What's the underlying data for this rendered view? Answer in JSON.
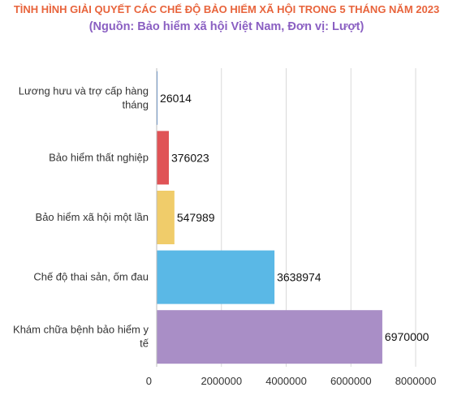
{
  "header": {
    "title": "TÌNH HÌNH GIẢI QUYẾT CÁC CHẾ ĐỘ BẢO HIỂM XÃ HỘI TRONG 5 THÁNG NĂM 2023",
    "subtitle": "(Nguồn: Bảo hiểm xã hội Việt Nam, Đơn vị: Lượt)"
  },
  "chart_data": {
    "type": "bar",
    "orientation": "horizontal",
    "title": "TÌNH HÌNH GIẢI QUYẾT CÁC CHẾ ĐỘ BẢO HIỂM XÃ HỘI TRONG 5 THÁNG NĂM 2023",
    "subtitle": "(Nguồn: Bảo hiểm xã hội Việt Nam, Đơn vị: Lượt)",
    "categories": [
      [
        "Lương hưu và trợ cấp hàng",
        "tháng"
      ],
      [
        "Bảo hiểm thất nghiệp"
      ],
      [
        "Bảo hiểm xã hội một lần"
      ],
      [
        "Chế độ thai sản, ốm đau"
      ],
      [
        "Khám chữa bệnh bảo hiểm y",
        "tế"
      ]
    ],
    "values": [
      26014,
      376023,
      547989,
      3638974,
      6970000
    ],
    "value_labels": [
      "26014",
      "376023",
      "547989",
      "3638974",
      "6970000"
    ],
    "colors": [
      "#3a7fd4",
      "#e05356",
      "#f0cc6a",
      "#5ab8e6",
      "#a98ec6"
    ],
    "xlim": [
      0,
      8000000
    ],
    "x_ticks": [
      "0",
      "2000000",
      "4000000",
      "6000000",
      "8000000"
    ],
    "x_tick_values": [
      0,
      2000000,
      4000000,
      6000000,
      8000000
    ],
    "grid": true,
    "legend": "none"
  }
}
